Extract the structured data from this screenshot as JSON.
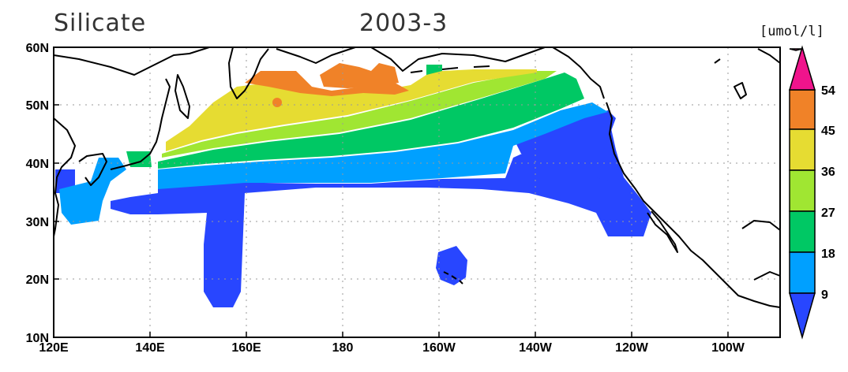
{
  "title": {
    "variable": "Silicate",
    "date": "2003-3"
  },
  "colorbar": {
    "unit": "[umol/l]",
    "ticks": [
      "54",
      "45",
      "36",
      "27",
      "18",
      "9"
    ],
    "colors": [
      "#f0148c",
      "#f08228",
      "#e6dc32",
      "#a0e632",
      "#00c864",
      "#00a0ff",
      "#2846ff"
    ]
  },
  "axes": {
    "lon_ticks": [
      "120E",
      "140E",
      "160E",
      "180",
      "160W",
      "140W",
      "120W",
      "100W"
    ],
    "lat_ticks": [
      "60N",
      "50N",
      "40N",
      "30N",
      "20N",
      "10N"
    ],
    "lon_range": [
      120,
      270
    ],
    "lat_range": [
      10,
      60
    ],
    "grid": true
  }
}
